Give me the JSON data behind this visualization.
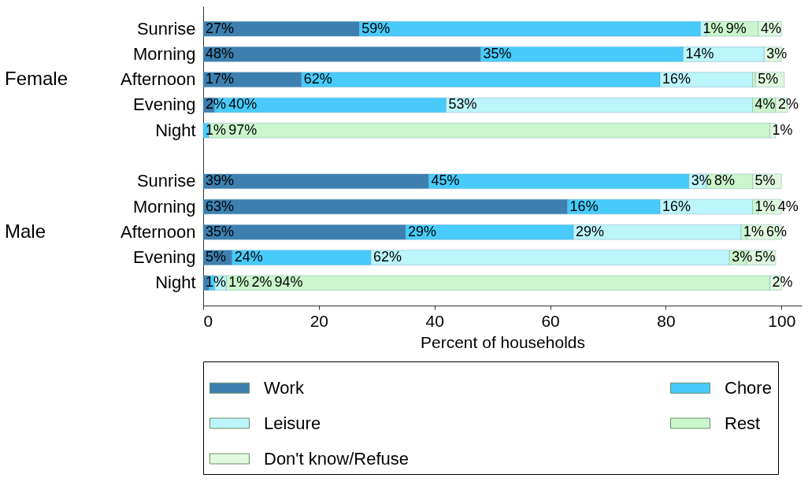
{
  "chart_data": {
    "type": "bar",
    "orientation": "horizontal",
    "stacked": true,
    "xlabel": "Percent of households",
    "xlim": [
      0,
      103.5
    ],
    "xticks": [
      0,
      20,
      40,
      60,
      80,
      100
    ],
    "legend": "bottom",
    "grid": false,
    "annotations": [
      "Female",
      "Male"
    ],
    "categories": [
      "Sunrise",
      "Morning",
      "Afternoon",
      "Evening",
      "Night",
      null,
      "Sunrise",
      "Morning",
      "Afternoon",
      "Evening",
      "Night"
    ],
    "series": [
      {
        "name": "Work",
        "color": "#3d80b0",
        "values": [
          27,
          48,
          17,
          2,
          null,
          null,
          39,
          63,
          35,
          5,
          1
        ],
        "value_labels": [
          "27%",
          "48%",
          "17%",
          "2%",
          null,
          null,
          "39%",
          "63%",
          "35%",
          "5%",
          "1%"
        ]
      },
      {
        "name": "Chore",
        "color": "#48cbfb",
        "values": [
          59,
          35,
          62,
          40,
          1,
          null,
          45,
          16,
          29,
          24,
          1
        ],
        "value_labels": [
          "59%",
          "35%",
          "62%",
          "40%",
          "1%",
          null,
          "45%",
          "16%",
          "29%",
          "24%",
          "1%"
        ]
      },
      {
        "name": "Leisure",
        "color": "#bcf5fb",
        "values": [
          1,
          14,
          16,
          53,
          null,
          null,
          3,
          16,
          29,
          62,
          2
        ],
        "value_labels": [
          "1%",
          "14%",
          "16%",
          "53%",
          null,
          null,
          "3%",
          "16%",
          "29%",
          "62%",
          "2%"
        ]
      },
      {
        "name": "Rest",
        "color": "#cbf5cb",
        "values": [
          9,
          null,
          0.5,
          4,
          97,
          null,
          8,
          1,
          1,
          3,
          94
        ],
        "value_labels": [
          "9%",
          null,
          null,
          "4%",
          "97%",
          null,
          "8%",
          "1%",
          "1%",
          "3%",
          "94%"
        ]
      },
      {
        "name": "Don't know/Refuse",
        "color": "#dff8df",
        "values": [
          4,
          3,
          5,
          2,
          1,
          null,
          5,
          4,
          6,
          5,
          2
        ],
        "value_labels": [
          "4%",
          "3%",
          "5%",
          "2%",
          "1%",
          null,
          "5%",
          "4%",
          "6%",
          "5%",
          "2%"
        ]
      }
    ]
  }
}
